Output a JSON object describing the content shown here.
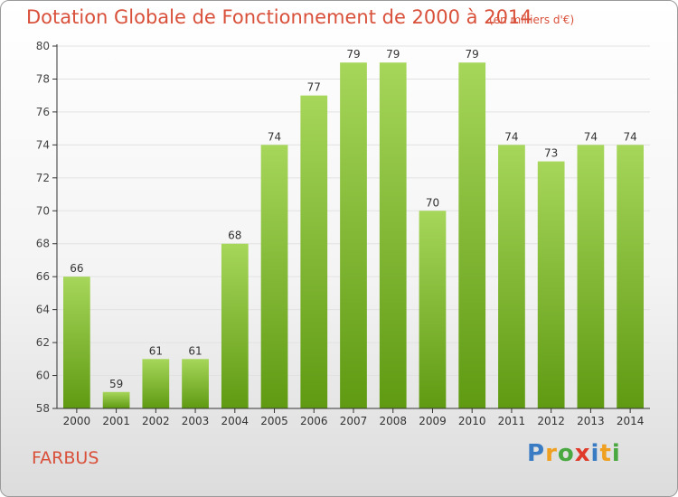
{
  "header": {
    "title": "Dotation Globale de Fonctionnement de 2000 à 2014",
    "unit": "(en milliers d'€)"
  },
  "footer": {
    "commune": "FARBUS",
    "logo_letters": [
      "P",
      "r",
      "o",
      "x",
      "i",
      "t",
      "i"
    ],
    "logo_colors": [
      "#3a7cc4",
      "#f0a020",
      "#4aa840",
      "#e03a2a",
      "#3a7cc4",
      "#f0a020",
      "#4aa840"
    ]
  },
  "colors": {
    "title": "#d9503a",
    "bar_light": "#a6d65a",
    "bar_dark": "#5f9a12",
    "grid": "#e2e2e2",
    "axis": "#333333"
  },
  "chart_data": {
    "type": "bar",
    "title": "Dotation Globale de Fonctionnement de 2000 à 2014",
    "subtitle": "(en milliers d'€)",
    "categories": [
      "2000",
      "2001",
      "2002",
      "2003",
      "2004",
      "2005",
      "2006",
      "2007",
      "2008",
      "2009",
      "2010",
      "2011",
      "2012",
      "2013",
      "2014"
    ],
    "values": [
      66,
      59,
      61,
      61,
      68,
      74,
      77,
      79,
      79,
      70,
      79,
      74,
      73,
      74,
      74
    ],
    "ylim": [
      58,
      80
    ],
    "yticks": [
      58,
      60,
      62,
      64,
      66,
      68,
      70,
      72,
      74,
      76,
      78,
      80
    ],
    "grid": true,
    "legend": "none"
  }
}
